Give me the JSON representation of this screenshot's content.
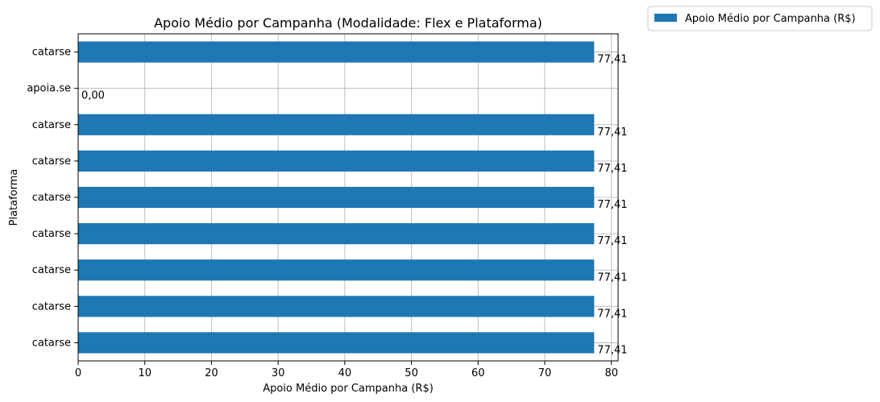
{
  "chart_data": {
    "type": "bar",
    "orientation": "horizontal",
    "title": "Apoio Médio por Campanha (Modalidade: Flex e Plataforma)",
    "xlabel": "Apoio Médio por Campanha (R$)",
    "ylabel": "Plataforma",
    "xlim": [
      0,
      81
    ],
    "xticks": [
      0,
      10,
      20,
      30,
      40,
      50,
      60,
      70,
      80
    ],
    "grid": true,
    "legend_position": "outside-top-right",
    "categories": [
      "catarse",
      "catarse",
      "catarse",
      "catarse",
      "catarse",
      "catarse",
      "catarse",
      "apoia.se",
      "catarse"
    ],
    "series": [
      {
        "name": "Apoio Médio por Campanha (R$)",
        "color": "#1f77b4",
        "values": [
          77.41,
          77.41,
          77.41,
          77.41,
          77.41,
          77.41,
          77.41,
          0.0,
          77.41
        ],
        "labels": [
          "77,41",
          "77,41",
          "77,41",
          "77,41",
          "77,41",
          "77,41",
          "77,41",
          "0,00",
          "77,41"
        ]
      }
    ]
  }
}
